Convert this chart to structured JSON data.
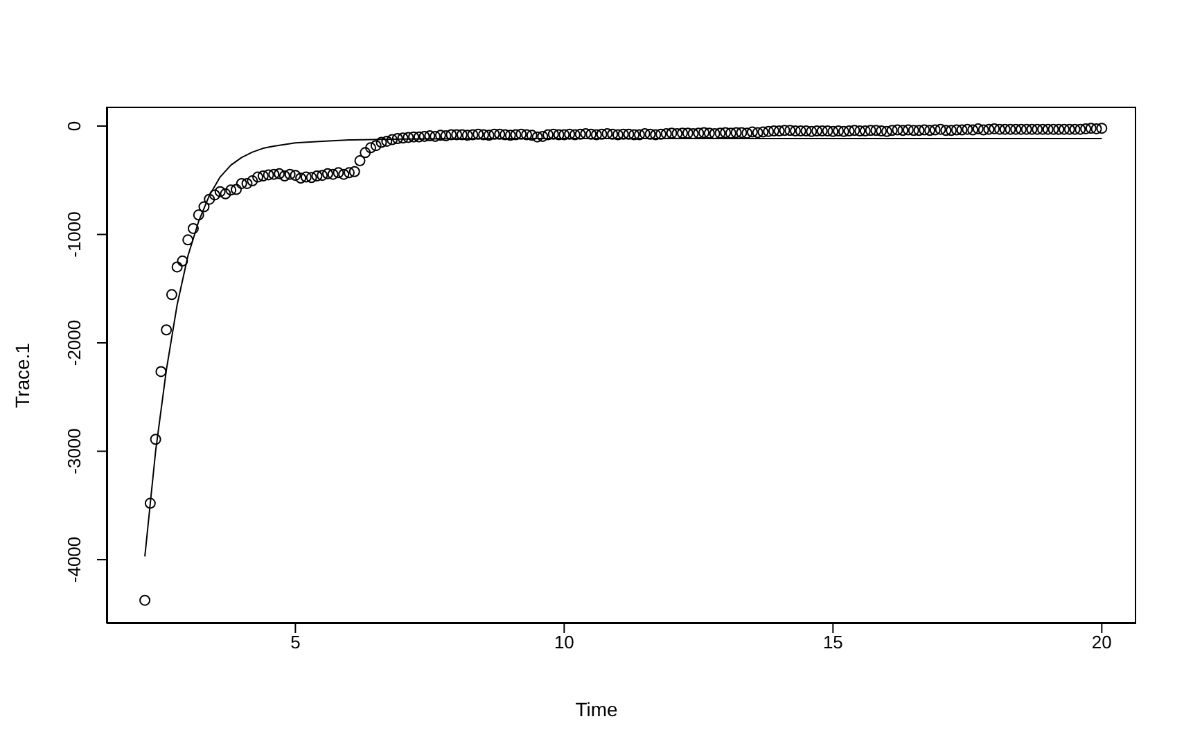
{
  "chart_data": {
    "type": "scatter",
    "xlabel": "Time",
    "ylabel": "Trace.1",
    "xlim": [
      1.49,
      20.64
    ],
    "ylim": [
      -4588,
      179
    ],
    "xticks": [
      5,
      10,
      15,
      20
    ],
    "yticks": [
      -4000,
      -3000,
      -2000,
      -1000,
      0
    ],
    "grid": false,
    "legend": false,
    "series": [
      {
        "color": "#000000",
        "marker": "circle",
        "x": [
          2.2,
          2.3,
          2.4,
          2.5,
          2.6,
          2.7,
          2.8,
          2.9,
          3.0,
          3.1,
          3.2,
          3.3,
          3.4,
          3.5,
          3.6,
          3.7,
          3.8,
          3.9,
          4.0,
          4.1,
          4.2,
          4.3,
          4.4,
          4.5,
          4.6,
          4.7,
          4.8,
          4.9,
          5.0,
          5.1,
          5.2,
          5.3,
          5.4,
          5.5,
          5.6,
          5.7,
          5.8,
          5.9,
          6.0,
          6.1,
          6.2,
          6.3,
          6.4,
          6.5,
          6.6,
          6.7,
          6.8,
          6.9,
          7.0,
          7.1,
          7.2,
          7.3,
          7.4,
          7.5,
          7.6,
          7.7,
          7.8,
          7.9,
          8.0,
          8.1,
          8.2,
          8.3,
          8.4,
          8.5,
          8.6,
          8.7,
          8.8,
          8.9,
          9.0,
          9.1,
          9.2,
          9.3,
          9.4,
          9.5,
          9.6,
          9.7,
          9.8,
          9.9,
          10.0,
          10.1,
          10.2,
          10.3,
          10.4,
          10.5,
          10.6,
          10.7,
          10.8,
          10.9,
          11.0,
          11.1,
          11.2,
          11.3,
          11.4,
          11.5,
          11.6,
          11.7,
          11.8,
          11.9,
          12.0,
          12.1,
          12.2,
          12.3,
          12.4,
          12.5,
          12.6,
          12.7,
          12.8,
          12.9,
          13.0,
          13.1,
          13.2,
          13.3,
          13.4,
          13.5,
          13.6,
          13.7,
          13.8,
          13.9,
          14.0,
          14.1,
          14.2,
          14.3,
          14.4,
          14.5,
          14.6,
          14.7,
          14.8,
          14.9,
          15.0,
          15.1,
          15.2,
          15.3,
          15.4,
          15.5,
          15.6,
          15.7,
          15.8,
          15.9,
          16.0,
          16.1,
          16.2,
          16.3,
          16.4,
          16.5,
          16.6,
          16.7,
          16.8,
          16.9,
          17.0,
          17.1,
          17.2,
          17.3,
          17.4,
          17.5,
          17.6,
          17.7,
          17.8,
          17.9,
          18.0,
          18.1,
          18.2,
          18.3,
          18.4,
          18.5,
          18.6,
          18.7,
          18.8,
          18.9,
          19.0,
          19.1,
          19.2,
          19.3,
          19.4,
          19.5,
          19.6,
          19.7,
          19.8,
          19.9,
          20.0
        ],
        "values": [
          -4375,
          -3480,
          -2890,
          -2265,
          -1880,
          -1555,
          -1300,
          -1245,
          -1050,
          -945,
          -820,
          -745,
          -675,
          -635,
          -605,
          -625,
          -590,
          -585,
          -530,
          -530,
          -505,
          -470,
          -460,
          -450,
          -445,
          -440,
          -460,
          -445,
          -455,
          -480,
          -470,
          -475,
          -460,
          -455,
          -440,
          -445,
          -430,
          -445,
          -430,
          -420,
          -320,
          -245,
          -200,
          -180,
          -150,
          -140,
          -125,
          -115,
          -110,
          -105,
          -100,
          -100,
          -95,
          -90,
          -95,
          -85,
          -90,
          -80,
          -80,
          -80,
          -85,
          -80,
          -75,
          -80,
          -85,
          -75,
          -75,
          -80,
          -85,
          -80,
          -75,
          -80,
          -85,
          -100,
          -95,
          -80,
          -75,
          -80,
          -80,
          -75,
          -80,
          -75,
          -70,
          -75,
          -80,
          -75,
          -70,
          -75,
          -80,
          -75,
          -75,
          -80,
          -80,
          -70,
          -75,
          -80,
          -75,
          -70,
          -65,
          -70,
          -65,
          -65,
          -70,
          -65,
          -60,
          -65,
          -70,
          -65,
          -60,
          -65,
          -60,
          -60,
          -65,
          -55,
          -60,
          -55,
          -50,
          -45,
          -45,
          -40,
          -40,
          -45,
          -45,
          -45,
          -50,
          -45,
          -45,
          -45,
          -50,
          -45,
          -50,
          -45,
          -40,
          -45,
          -45,
          -40,
          -40,
          -45,
          -50,
          -40,
          -35,
          -40,
          -35,
          -40,
          -40,
          -35,
          -40,
          -35,
          -30,
          -40,
          -40,
          -35,
          -35,
          -30,
          -35,
          -25,
          -35,
          -30,
          -25,
          -30,
          -30,
          -30,
          -30,
          -30,
          -30,
          -30,
          -30,
          -30,
          -30,
          -30,
          -30,
          -30,
          -30,
          -30,
          -30,
          -25,
          -20,
          -25,
          -20
        ]
      },
      {
        "type": "line",
        "color": "#000000",
        "marker": "none",
        "line_style": "solid",
        "x": [
          2.2,
          2.4,
          2.6,
          2.8,
          3.0,
          3.2,
          3.4,
          3.6,
          3.8,
          4.0,
          4.2,
          4.4,
          4.6,
          5.0,
          5.5,
          6.0,
          7.0,
          8.0,
          10.0,
          15.0,
          20.0
        ],
        "values": [
          -3970,
          -3000,
          -2250,
          -1650,
          -1200,
          -880,
          -640,
          -470,
          -360,
          -290,
          -240,
          -205,
          -185,
          -155,
          -140,
          -128,
          -120,
          -117,
          -115,
          -115,
          -115
        ]
      }
    ]
  }
}
